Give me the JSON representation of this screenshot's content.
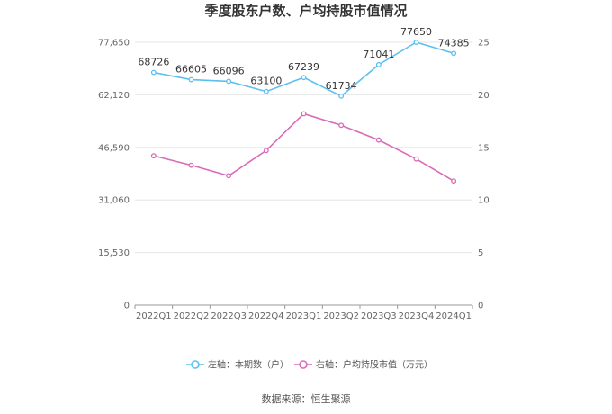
{
  "chart_data": {
    "type": "line",
    "title": "季度股东户数、户均持股市值情况",
    "categories": [
      "2022Q1",
      "2022Q2",
      "2022Q3",
      "2022Q4",
      "2023Q1",
      "2023Q2",
      "2023Q3",
      "2023Q4",
      "2024Q1"
    ],
    "series": [
      {
        "name": "左轴：本期数（户）",
        "axis": "left",
        "color": "#5bc0f0",
        "values": [
          68726,
          66605,
          66096,
          63100,
          67239,
          61734,
          71041,
          77650,
          74385
        ],
        "labels": [
          "68726",
          "66605",
          "66096",
          "63100",
          "67239",
          "61734",
          "71041",
          "77650",
          "74385"
        ]
      },
      {
        "name": "右轴：户均持股市值（万元）",
        "axis": "right",
        "color": "#d96bb8",
        "values": [
          14.2,
          13.3,
          12.3,
          14.7,
          18.2,
          17.1,
          15.7,
          13.9,
          11.8
        ]
      }
    ],
    "y_left": {
      "ticks": [
        "0",
        "15,530",
        "31,060",
        "46,590",
        "62,120",
        "77,650"
      ],
      "range": [
        0,
        77650
      ]
    },
    "y_right": {
      "ticks": [
        "0",
        "5",
        "10",
        "15",
        "20",
        "25"
      ],
      "range": [
        0,
        25
      ]
    },
    "grid": true,
    "legend_position": "bottom"
  },
  "source": "数据来源：恒生聚源"
}
